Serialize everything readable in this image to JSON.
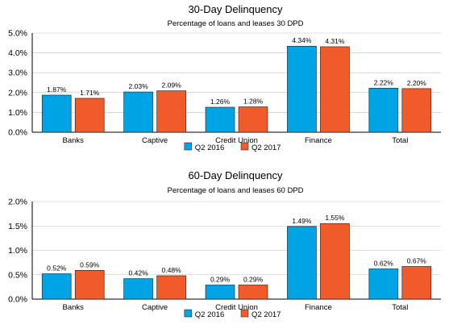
{
  "chart_data": [
    {
      "type": "bar",
      "title": "30-Day Delinquency",
      "subtitle": "Percentage of loans and leases 30 DPD",
      "categories": [
        "Banks",
        "Captive",
        "Credit Union",
        "Finance",
        "Total"
      ],
      "series": [
        {
          "name": "Q2 2016",
          "color": "#00a4e4",
          "values": [
            1.87,
            2.03,
            1.26,
            4.34,
            2.22
          ],
          "labels": [
            "1.87%",
            "2.03%",
            "1.26%",
            "4.34%",
            "2.22%"
          ]
        },
        {
          "name": "Q2 2017",
          "color": "#f15a29",
          "values": [
            1.71,
            2.09,
            1.28,
            4.31,
            2.2
          ],
          "labels": [
            "1.71%",
            "2.09%",
            "1.28%",
            "4.31%",
            "2.20%"
          ]
        }
      ],
      "ylim": [
        0,
        5
      ],
      "yticks": [
        0,
        1,
        2,
        3,
        4,
        5
      ],
      "ytick_labels": [
        "0.0%",
        "1.0%",
        "2.0%",
        "3.0%",
        "4.0%",
        "5.0%"
      ],
      "grid": true,
      "legend_position": "bottom-center"
    },
    {
      "type": "bar",
      "title": "60-Day Delinquency",
      "subtitle": "Percentage of loans and leases 60 DPD",
      "categories": [
        "Banks",
        "Captive",
        "Credit Union",
        "Finance",
        "Total"
      ],
      "series": [
        {
          "name": "Q2 2016",
          "color": "#00a4e4",
          "values": [
            0.52,
            0.42,
            0.29,
            1.49,
            0.62
          ],
          "labels": [
            "0.52%",
            "0.42%",
            "0.29%",
            "1.49%",
            "0.62%"
          ]
        },
        {
          "name": "Q2 2017",
          "color": "#f15a29",
          "values": [
            0.59,
            0.48,
            0.29,
            1.55,
            0.67
          ],
          "labels": [
            "0.59%",
            "0.48%",
            "0.29%",
            "1.55%",
            "0.67%"
          ]
        }
      ],
      "ylim": [
        0,
        2
      ],
      "yticks": [
        0,
        0.5,
        1,
        1.5,
        2
      ],
      "ytick_labels": [
        "0.0%",
        "0.5%",
        "1.0%",
        "1.5%",
        "2.0%"
      ],
      "grid": true,
      "legend_position": "bottom-center"
    }
  ]
}
